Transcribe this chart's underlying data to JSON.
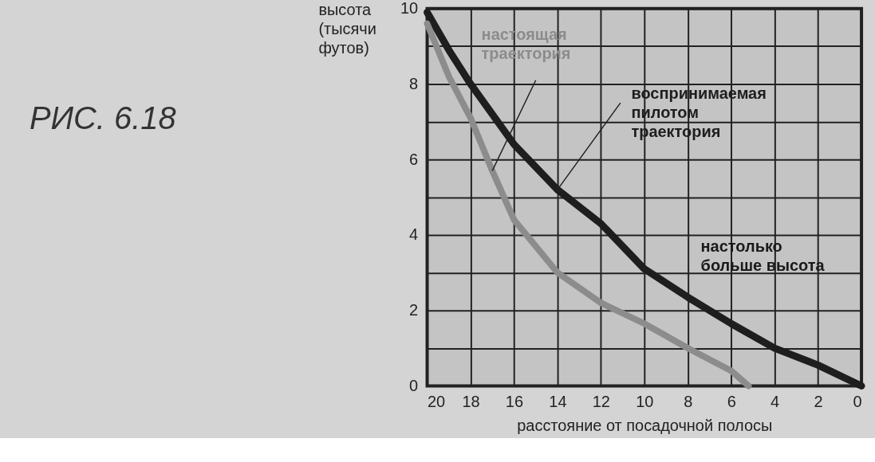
{
  "chart_data": {
    "type": "line",
    "title": "РИС. 6.18",
    "xlabel": "расстояние от посадочной полосы",
    "ylabel": "высота (тысячи футов)",
    "x": [
      20,
      19,
      18,
      17,
      16,
      14,
      12,
      10,
      8,
      6,
      4,
      2,
      0
    ],
    "series": [
      {
        "name": "воспринимаемая пилотом траектория",
        "color": "#1e1e1e",
        "values": [
          9.9,
          8.9,
          8.0,
          7.2,
          6.4,
          5.2,
          4.3,
          3.1,
          2.35,
          1.65,
          1.0,
          0.55,
          0
        ]
      },
      {
        "name": "настоящая траектория",
        "color": "#8c8c8c",
        "x": [
          20,
          19,
          18,
          17,
          16,
          14,
          12,
          10,
          8,
          6,
          5.2
        ],
        "values": [
          9.6,
          8.2,
          7.1,
          5.7,
          4.4,
          3.0,
          2.2,
          1.65,
          1.0,
          0.4,
          0
        ]
      }
    ],
    "annotations": [
      "настолько больше высота"
    ],
    "xlim": [
      20,
      0
    ],
    "xticks": [
      20,
      18,
      16,
      14,
      12,
      10,
      8,
      6,
      4,
      2,
      0
    ],
    "ylim": [
      0,
      10
    ],
    "yticks": [
      0,
      {
        "value": 1,
        "label": null
      },
      2,
      {
        "value": 3,
        "label": null
      },
      4,
      {
        "value": 5,
        "label": null
      },
      6,
      {
        "value": 7,
        "label": null
      },
      8,
      {
        "value": 9,
        "label": null
      },
      10
    ],
    "grid": true,
    "legend": false,
    "line_style": "solid"
  }
}
